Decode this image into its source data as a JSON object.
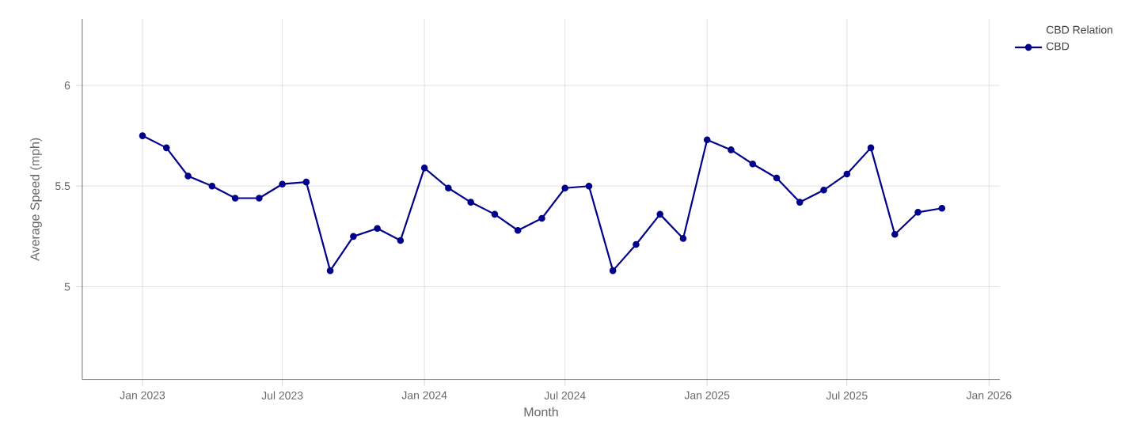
{
  "chart_data": {
    "type": "line",
    "xlabel": "Month",
    "ylabel": "Average Speed (mph)",
    "legend_title": "CBD Relation",
    "x": [
      "2023-01",
      "2023-02",
      "2023-03",
      "2023-04",
      "2023-05",
      "2023-06",
      "2023-07",
      "2023-08",
      "2023-09",
      "2023-10",
      "2023-11",
      "2023-12",
      "2024-01",
      "2024-02",
      "2024-03",
      "2024-04",
      "2024-05",
      "2024-06",
      "2024-07",
      "2024-08",
      "2024-09",
      "2024-10",
      "2024-11",
      "2024-12",
      "2025-01",
      "2025-02",
      "2025-03",
      "2025-04",
      "2025-05",
      "2025-06",
      "2025-07",
      "2025-08",
      "2025-09",
      "2025-10",
      "2025-11"
    ],
    "series": [
      {
        "name": "CBD",
        "color": "#00008b",
        "values": [
          5.75,
          5.69,
          5.55,
          5.5,
          5.44,
          5.44,
          5.51,
          5.52,
          5.08,
          5.25,
          5.29,
          5.23,
          5.59,
          5.49,
          5.42,
          5.36,
          5.28,
          5.34,
          5.49,
          5.5,
          5.08,
          5.21,
          5.36,
          5.24,
          5.73,
          5.68,
          5.61,
          5.54,
          5.42,
          5.48,
          5.56,
          5.69,
          5.26,
          5.37,
          5.39
        ]
      }
    ],
    "xlim": [
      "2022-10-15",
      "2026-01-15"
    ],
    "xticks": [
      {
        "value": "2023-01",
        "label": "Jan 2023"
      },
      {
        "value": "2023-07",
        "label": "Jul 2023"
      },
      {
        "value": "2024-01",
        "label": "Jan 2024"
      },
      {
        "value": "2024-07",
        "label": "Jul 2024"
      },
      {
        "value": "2025-01",
        "label": "Jan 2025"
      },
      {
        "value": "2025-07",
        "label": "Jul 2025"
      },
      {
        "value": "2026-01",
        "label": "Jan 2026"
      }
    ],
    "ylim": [
      4.54,
      6.33
    ],
    "yticks": [
      5,
      5.5,
      6
    ],
    "grid": true,
    "legend": "top right",
    "marker": "circle",
    "line_style": "solid"
  }
}
